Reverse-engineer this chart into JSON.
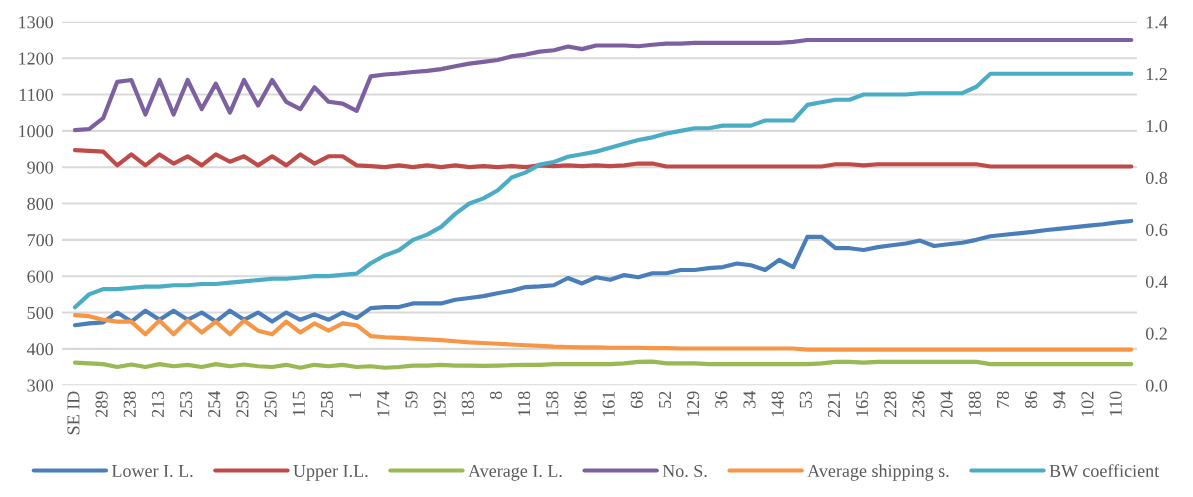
{
  "chart_data": {
    "type": "line",
    "categories": [
      "SE ID",
      null,
      "289",
      null,
      "238",
      null,
      "213",
      null,
      "253",
      null,
      "254",
      null,
      "259",
      null,
      "250",
      null,
      "115",
      null,
      "258",
      null,
      "1",
      null,
      "174",
      null,
      "59",
      null,
      "192",
      null,
      "183",
      null,
      "8",
      null,
      "118",
      null,
      "158",
      null,
      "186",
      null,
      "161",
      null,
      "68",
      null,
      "52",
      null,
      "129",
      null,
      "36",
      null,
      "34",
      null,
      "148",
      null,
      "53",
      null,
      "221",
      null,
      "165",
      null,
      "228",
      null,
      "236",
      null,
      "204",
      null,
      "188",
      null,
      "78",
      null,
      "86",
      null,
      "94",
      null,
      "102",
      null,
      "110",
      null
    ],
    "series": [
      {
        "name": "Lower I. L.",
        "color": "#4a7ebb",
        "values": [
          465,
          470,
          473,
          500,
          475,
          505,
          480,
          505,
          480,
          500,
          475,
          505,
          480,
          500,
          475,
          500,
          480,
          495,
          480,
          500,
          485,
          512,
          515,
          515,
          525,
          525,
          525,
          535,
          540,
          545,
          553,
          560,
          570,
          572,
          575,
          595,
          580,
          597,
          590,
          603,
          597,
          608,
          608,
          617,
          617,
          622,
          625,
          635,
          630,
          617,
          645,
          625,
          708,
          708,
          677,
          677,
          672,
          680,
          685,
          690,
          698,
          683,
          688,
          692,
          700,
          710,
          714,
          718,
          722,
          727,
          731,
          735,
          739,
          743,
          748,
          752
        ]
      },
      {
        "name": "Upper I.L.",
        "color": "#be4b48",
        "values": [
          947,
          945,
          943,
          905,
          935,
          905,
          935,
          910,
          930,
          905,
          935,
          915,
          930,
          905,
          930,
          905,
          935,
          910,
          930,
          930,
          905,
          903,
          900,
          905,
          900,
          905,
          900,
          905,
          900,
          903,
          900,
          903,
          900,
          905,
          903,
          905,
          903,
          905,
          903,
          905,
          910,
          910,
          902,
          902,
          902,
          902,
          902,
          902,
          902,
          902,
          902,
          902,
          902,
          902,
          908,
          908,
          905,
          908,
          908,
          908,
          908,
          908,
          908,
          908,
          908,
          902,
          902,
          902,
          902,
          902,
          902,
          902,
          902,
          902,
          902,
          902
        ]
      },
      {
        "name": "Average I. L.",
        "color": "#98b954",
        "values": [
          362,
          360,
          358,
          350,
          357,
          350,
          358,
          352,
          356,
          350,
          358,
          352,
          357,
          352,
          350,
          356,
          348,
          356,
          352,
          356,
          350,
          352,
          348,
          350,
          354,
          354,
          356,
          354,
          354,
          353,
          354,
          355,
          356,
          356,
          358,
          358,
          358,
          358,
          358,
          360,
          364,
          365,
          360,
          360,
          360,
          358,
          358,
          358,
          358,
          358,
          358,
          358,
          358,
          360,
          364,
          364,
          362,
          364,
          364,
          364,
          364,
          364,
          364,
          364,
          364,
          358,
          358,
          358,
          358,
          358,
          358,
          358,
          358,
          358,
          358,
          358
        ]
      },
      {
        "name": "No. S.",
        "color": "#7d60a0",
        "values": [
          1002,
          1005,
          1035,
          1135,
          1140,
          1045,
          1140,
          1045,
          1140,
          1060,
          1130,
          1050,
          1140,
          1070,
          1140,
          1080,
          1060,
          1120,
          1080,
          1075,
          1055,
          1150,
          1155,
          1158,
          1162,
          1165,
          1170,
          1178,
          1185,
          1190,
          1195,
          1205,
          1210,
          1218,
          1222,
          1232,
          1225,
          1235,
          1235,
          1235,
          1233,
          1237,
          1240,
          1240,
          1242,
          1242,
          1242,
          1242,
          1242,
          1242,
          1242,
          1245,
          1250,
          1250,
          1250,
          1250,
          1250,
          1250,
          1250,
          1250,
          1250,
          1250,
          1250,
          1250,
          1250,
          1250,
          1250,
          1250,
          1250,
          1250,
          1250,
          1250,
          1250,
          1250,
          1250,
          1250
        ]
      },
      {
        "name": "Average shipping s.",
        "color": "#f79646",
        "values": [
          493,
          490,
          480,
          475,
          475,
          440,
          478,
          440,
          478,
          445,
          475,
          440,
          478,
          450,
          440,
          475,
          445,
          470,
          450,
          470,
          465,
          435,
          432,
          430,
          428,
          426,
          424,
          421,
          418,
          416,
          414,
          412,
          410,
          408,
          406,
          405,
          404,
          404,
          403,
          403,
          403,
          402,
          402,
          401,
          401,
          401,
          401,
          401,
          401,
          401,
          401,
          401,
          398,
          398,
          398,
          398,
          398,
          398,
          398,
          398,
          398,
          398,
          398,
          398,
          398,
          398,
          398,
          398,
          398,
          398,
          398,
          398,
          398,
          398,
          398,
          398
        ]
      },
      {
        "name": "BW coefficient",
        "color": "#4bacc6",
        "axis": "y2",
        "values": [
          0.3,
          0.35,
          0.37,
          0.37,
          0.375,
          0.38,
          0.38,
          0.385,
          0.385,
          0.39,
          0.39,
          0.395,
          0.4,
          0.405,
          0.41,
          0.41,
          0.415,
          0.42,
          0.42,
          0.425,
          0.43,
          0.47,
          0.5,
          0.52,
          0.56,
          0.58,
          0.61,
          0.66,
          0.7,
          0.72,
          0.75,
          0.8,
          0.82,
          0.85,
          0.86,
          0.88,
          0.89,
          0.9,
          0.915,
          0.93,
          0.945,
          0.955,
          0.97,
          0.98,
          0.99,
          0.99,
          1.0,
          1.0,
          1.0,
          1.02,
          1.02,
          1.02,
          1.08,
          1.09,
          1.1,
          1.1,
          1.12,
          1.12,
          1.12,
          1.12,
          1.125,
          1.125,
          1.125,
          1.125,
          1.15,
          1.2,
          1.2,
          1.2,
          1.2,
          1.2,
          1.2,
          1.2,
          1.2,
          1.2,
          1.2,
          1.2
        ]
      }
    ],
    "ylim": [
      300,
      1300
    ],
    "yticks": [
      300,
      400,
      500,
      600,
      700,
      800,
      900,
      1000,
      1100,
      1200,
      1300
    ],
    "y2lim": [
      0,
      1.4
    ],
    "y2ticks": [
      {
        "value": 0,
        "label": "0.0"
      },
      {
        "value": 0.2,
        "label": "0.2"
      },
      {
        "value": 0.4,
        "label": "0.4"
      },
      {
        "value": 0.6,
        "label": "0.6"
      },
      {
        "value": 0.8,
        "label": "0.8"
      },
      {
        "value": 1.0,
        "label": "1.0"
      },
      {
        "value": 1.2,
        "label": "1.2"
      },
      {
        "value": 1.4,
        "label": "1.4"
      }
    ],
    "grid": "y",
    "legend": "bottom",
    "marker": "none",
    "line_style": "solid"
  }
}
